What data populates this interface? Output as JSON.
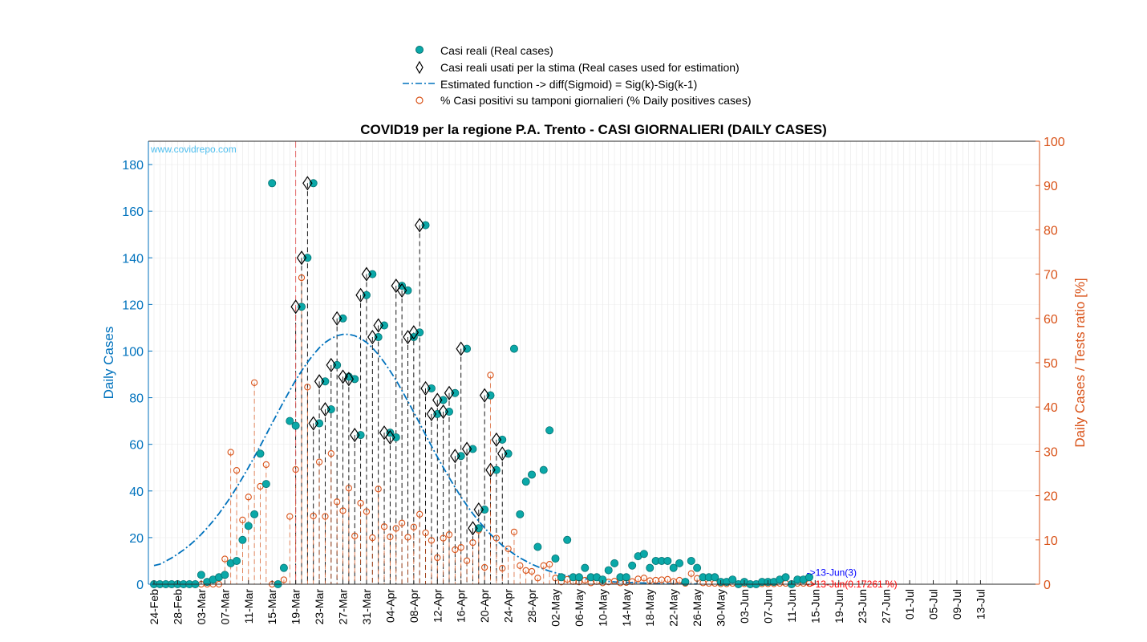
{
  "chart_data": {
    "type": "scatter",
    "title": "COVID19 per la regione P.A. Trento - CASI GIORNALIERI (DAILY CASES)",
    "ylabel_left": "Daily Cases",
    "ylabel_right": "Daily Cases / Tests ratio [%]",
    "watermark": "www.covidrepo.com",
    "ylim_left": [
      0,
      190
    ],
    "ylim_right": [
      0,
      100
    ],
    "yticks_left": [
      0,
      20,
      40,
      60,
      80,
      100,
      120,
      140,
      160,
      180
    ],
    "yticks_right": [
      0,
      10,
      20,
      30,
      40,
      50,
      60,
      70,
      80,
      90,
      100
    ],
    "start_date": "2020-02-24",
    "end_date": "2020-07-15",
    "xtick_labels": [
      "24-Feb",
      "28-Feb",
      "03-Mar",
      "07-Mar",
      "11-Mar",
      "15-Mar",
      "19-Mar",
      "23-Mar",
      "27-Mar",
      "31-Mar",
      "04-Apr",
      "08-Apr",
      "12-Apr",
      "16-Apr",
      "20-Apr",
      "24-Apr",
      "28-Apr",
      "02-May",
      "06-May",
      "10-May",
      "14-May",
      "18-May",
      "22-May",
      "26-May",
      "30-May",
      "03-Jun",
      "07-Jun",
      "11-Jun",
      "15-Jun",
      "19-Jun",
      "23-Jun",
      "27-Jun",
      "01-Jul",
      "05-Jul",
      "09-Jul",
      "13-Jul"
    ],
    "xtick_dates": [
      "2020-02-24",
      "2020-02-28",
      "2020-03-03",
      "2020-03-07",
      "2020-03-11",
      "2020-03-15",
      "2020-03-19",
      "2020-03-23",
      "2020-03-27",
      "2020-03-31",
      "2020-04-04",
      "2020-04-08",
      "2020-04-12",
      "2020-04-16",
      "2020-04-20",
      "2020-04-24",
      "2020-04-28",
      "2020-05-02",
      "2020-05-06",
      "2020-05-10",
      "2020-05-14",
      "2020-05-18",
      "2020-05-22",
      "2020-05-26",
      "2020-05-30",
      "2020-06-03",
      "2020-06-07",
      "2020-06-11",
      "2020-06-15",
      "2020-06-19",
      "2020-06-23",
      "2020-06-27",
      "2020-07-01",
      "2020-07-05",
      "2020-07-09",
      "2020-07-13"
    ],
    "legend": [
      {
        "label": "Casi reali (Real cases)",
        "marker": "filled-circle",
        "color": "#0AA8A8"
      },
      {
        "label": "Casi reali usati per la stima (Real cases used for estimation)",
        "marker": "diamond",
        "color": "#000000"
      },
      {
        "label": "Estimated function -> diff(Sigmoid) = Sig(k)-Sig(k-1)",
        "marker": "dash-dot",
        "color": "#0072BD"
      },
      {
        "label": "% Casi positivi su tamponi giornalieri (% Daily positives cases)",
        "marker": "open-circle",
        "color": "#D95319"
      }
    ],
    "series": [
      {
        "name": "Casi reali (Real cases)",
        "axis": "left",
        "color": "#0AA8A8",
        "values": [
          0,
          0,
          0,
          0,
          0,
          0,
          0,
          0,
          4,
          1,
          2,
          3,
          4,
          9,
          10,
          19,
          25,
          30,
          56,
          43,
          172,
          0,
          7,
          70,
          68,
          119,
          140,
          172,
          69,
          87,
          75,
          94,
          114,
          89,
          88,
          64,
          124,
          133,
          106,
          111,
          65,
          63,
          128,
          126,
          106,
          108,
          154,
          84,
          73,
          79,
          74,
          82,
          55,
          101,
          58,
          24,
          32,
          81,
          49,
          62,
          56,
          101,
          30,
          44,
          47,
          16,
          49,
          66,
          11,
          3,
          19,
          3,
          3,
          7,
          3,
          3,
          2,
          6,
          9,
          3,
          3,
          8,
          12,
          13,
          7,
          10,
          10,
          10,
          7,
          9,
          1,
          10,
          7,
          3,
          3,
          3,
          1,
          1,
          2,
          0,
          1,
          0,
          0,
          1,
          1,
          1,
          2,
          3,
          0,
          2,
          2,
          3
        ]
      },
      {
        "name": "Casi reali usati per la stima (Real cases used for estimation)",
        "axis": "left",
        "start_date": "2020-03-19",
        "color": "#000000",
        "values": [
          119,
          140,
          172,
          69,
          87,
          75,
          94,
          114,
          89,
          88,
          64,
          124,
          133,
          106,
          111,
          65,
          63,
          128,
          126,
          106,
          108,
          154,
          84,
          73,
          79,
          74,
          82,
          55,
          101,
          58,
          24,
          32,
          81,
          49,
          62,
          56
        ]
      },
      {
        "name": "Estimated function -> diff(Sigmoid) = Sig(k)-Sig(k-1)",
        "axis": "left",
        "color": "#0072BD",
        "values": [
          8,
          8.6,
          9.9,
          11.3,
          12.9,
          14.7,
          16.7,
          18.9,
          21.4,
          24.1,
          27.1,
          30.3,
          33.8,
          37.5,
          41.5,
          45.7,
          50.1,
          54.6,
          59.3,
          64.1,
          69.0,
          73.8,
          78.5,
          83.1,
          87.5,
          91.5,
          95.2,
          98.5,
          101.4,
          103.7,
          105.4,
          106.6,
          107.2,
          107.2,
          106.6,
          105.4,
          103.7,
          101.4,
          98.5,
          95.2,
          91.5,
          87.5,
          83.1,
          78.5,
          73.8,
          69.0,
          64.1,
          59.3,
          54.6,
          50.1,
          45.7,
          41.5,
          37.5,
          33.8,
          30.3,
          27.1,
          24.1,
          21.4,
          18.9,
          16.7,
          14.7,
          12.9,
          11.3,
          9.9,
          8.6,
          7.5,
          6.5,
          5.6,
          4.9,
          4.2,
          3.6,
          3.1,
          2.7,
          2.3,
          2.0,
          1.7,
          1.4,
          1.2,
          1.0,
          0.9,
          0.8,
          0.7,
          0.6,
          0.5,
          0.4,
          0.3,
          0.3,
          0.2,
          0.2,
          0.2,
          0.1,
          0.1,
          0.1,
          0.1,
          0.1,
          0.1,
          0,
          0,
          0,
          0,
          0,
          0,
          0,
          0,
          0,
          0,
          0,
          0,
          0,
          0,
          0,
          0,
          0,
          0,
          0,
          0,
          0,
          0,
          0,
          0,
          0,
          0,
          0,
          0,
          0,
          0,
          0,
          0,
          0,
          0,
          0,
          0,
          0,
          0,
          0,
          0,
          0,
          0,
          0,
          0,
          0
        ]
      },
      {
        "name": "% Casi positivi su tamponi giornalieri (% Daily positives cases)",
        "axis": "right",
        "color": "#D95319",
        "values": [
          0,
          0,
          0,
          0,
          0,
          0,
          0,
          0,
          0,
          0,
          0,
          0,
          5.7,
          29.8,
          25.7,
          14.5,
          19.7,
          45.5,
          22.1,
          27.0,
          0,
          0,
          1.0,
          15.3,
          25.9,
          69.2,
          44.5,
          15.4,
          27.6,
          15.3,
          29.5,
          18.6,
          16.6,
          21.7,
          10.9,
          18.3,
          16.4,
          10.5,
          21.5,
          13.0,
          10.7,
          12.6,
          13.8,
          10.6,
          12.9,
          15.8,
          11.6,
          9.9,
          6.0,
          10.4,
          11.2,
          7.8,
          8.3,
          5.3,
          9.4,
          12.2,
          3.8,
          47.2,
          10.4,
          3.6,
          8.0,
          11.8,
          4.2,
          3.1,
          2.9,
          1.4,
          4.2,
          4.5,
          1.4,
          0.5,
          1.1,
          0.6,
          0.5,
          0.9,
          0.3,
          0.6,
          0.3,
          0.5,
          0.7,
          0.3,
          0.4,
          0.6,
          1.2,
          1.4,
          0.8,
          0.9,
          1.0,
          1.1,
          0.6,
          0.9,
          0.2,
          2.4,
          1.3,
          0.3,
          0.2,
          0.2,
          0.1,
          0.1,
          0.2,
          0,
          0.1,
          0,
          0,
          0.1,
          0.1,
          0.1,
          0.2,
          0.2,
          0,
          0.2,
          0.2,
          0.17
        ]
      }
    ],
    "annotations": [
      {
        "text": "->13-Jun(3)",
        "color": "#0000FF",
        "date": "2020-06-13",
        "y": 3,
        "axis": "left"
      },
      {
        "text": "->13-Jun(0.17261 %)",
        "color": "#FF0000",
        "date": "2020-06-13",
        "y": 0.17261,
        "axis": "right"
      }
    ],
    "grid": true,
    "legend_position": "top-center"
  }
}
